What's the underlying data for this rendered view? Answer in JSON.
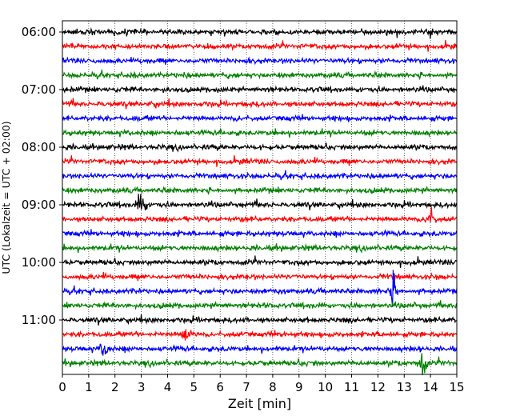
{
  "chart_data": {
    "type": "line",
    "title": "",
    "xlabel": "Zeit  [min]",
    "ylabel": "UTC (Lokalzeit = UTC + 02:00)",
    "xlim": [
      0,
      15
    ],
    "x_ticks": [
      "0",
      "1",
      "2",
      "3",
      "4",
      "5",
      "6",
      "7",
      "8",
      "9",
      "10",
      "11",
      "12",
      "13",
      "14",
      "15"
    ],
    "y_ticks": [
      {
        "label": "06:00",
        "trace": 0
      },
      {
        "label": "07:00",
        "trace": 4
      },
      {
        "label": "08:00",
        "trace": 8
      },
      {
        "label": "09:00",
        "trace": 12
      },
      {
        "label": "10:00",
        "trace": 16
      },
      {
        "label": "11:00",
        "trace": 20
      }
    ],
    "start_time": "06:00",
    "trace_minutes": 15,
    "trace_count": 24,
    "colors": [
      "#000000",
      "#ff0000",
      "#0000ff",
      "#008000"
    ],
    "grid": "vertical dotted at each minute",
    "events": [
      {
        "trace": 12,
        "minute": 3.0,
        "amp": 1.8
      },
      {
        "trace": 13,
        "minute": 14.0,
        "amp": 1.4
      },
      {
        "trace": 18,
        "minute": 12.6,
        "amp": 2.2
      },
      {
        "trace": 23,
        "minute": 13.7,
        "amp": 2.0
      },
      {
        "trace": 22,
        "minute": 1.6,
        "amp": 1.4
      },
      {
        "trace": 21,
        "minute": 4.7,
        "amp": 1.3
      }
    ]
  }
}
